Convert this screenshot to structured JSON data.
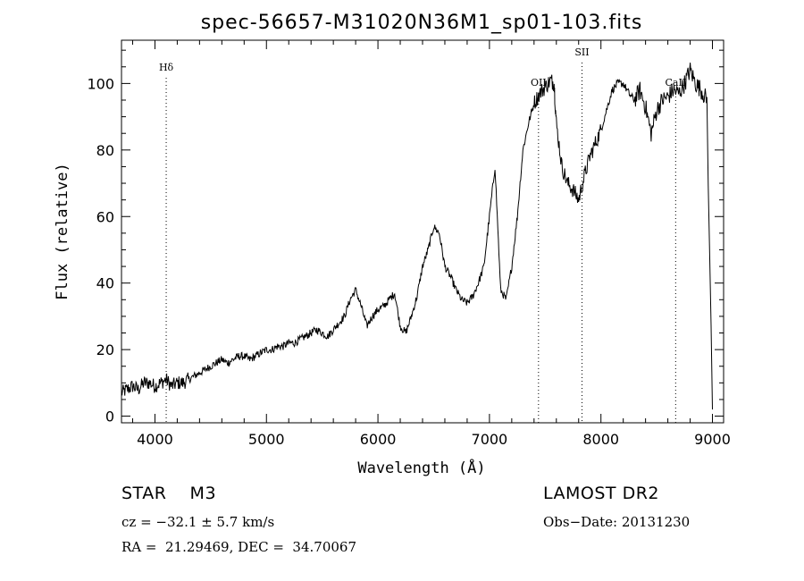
{
  "chart_data": {
    "type": "line",
    "title": "spec-56657-M31020N36M1_sp01-103.fits",
    "xlabel": "Wavelength (Å)",
    "ylabel": "Flux (relative)",
    "xlim": [
      3700,
      9100
    ],
    "ylim": [
      -2,
      113
    ],
    "xticks": [
      4000,
      5000,
      6000,
      7000,
      8000,
      9000
    ],
    "yticks": [
      0,
      20,
      40,
      60,
      80,
      100
    ],
    "grid": false,
    "lines": [
      {
        "label": "Hδ",
        "x": 4101
      },
      {
        "label": "OII",
        "x": 7440
      },
      {
        "label": "SII",
        "x": 7830
      },
      {
        "label": "CaII",
        "x": 8670
      }
    ],
    "series": [
      {
        "x": [
          3700,
          3750,
          3800,
          3850,
          3900,
          3950,
          4000,
          4050,
          4100,
          4150,
          4200,
          4250,
          4300,
          4350,
          4400,
          4450,
          4500,
          4550,
          4600,
          4650,
          4700,
          4750,
          4800,
          4850,
          4900,
          4950,
          5000,
          5050,
          5100,
          5150,
          5200,
          5250,
          5300,
          5350,
          5400,
          5450,
          5500,
          5550,
          5600,
          5650,
          5700,
          5750,
          5800,
          5850,
          5900,
          5950,
          6000,
          6050,
          6100,
          6150,
          6200,
          6250,
          6300,
          6350,
          6400,
          6450,
          6500,
          6550,
          6600,
          6650,
          6700,
          6750,
          6800,
          6850,
          6900,
          6950,
          7000,
          7050,
          7100,
          7150,
          7200,
          7250,
          7300,
          7350,
          7400,
          7450,
          7500,
          7550,
          7580,
          7600,
          7650,
          7700,
          7750,
          7800,
          7850,
          7900,
          7950,
          8000,
          8050,
          8100,
          8150,
          8200,
          8250,
          8300,
          8350,
          8400,
          8450,
          8500,
          8550,
          8600,
          8650,
          8700,
          8750,
          8800,
          8850,
          8900,
          8950,
          9000
        ],
        "y": [
          7,
          8,
          9,
          8,
          10,
          10,
          9,
          10,
          11,
          9,
          10,
          10,
          11,
          12,
          13,
          14,
          15,
          16,
          17,
          16,
          17,
          18,
          18,
          17,
          18,
          19,
          20,
          20,
          21,
          21,
          22,
          22,
          23,
          24,
          25,
          26,
          25,
          24,
          26,
          28,
          30,
          35,
          38,
          33,
          27,
          30,
          32,
          33,
          35,
          37,
          27,
          25,
          30,
          36,
          45,
          50,
          57,
          55,
          45,
          42,
          38,
          35,
          34,
          36,
          40,
          45,
          60,
          75,
          38,
          35,
          45,
          60,
          80,
          88,
          94,
          97,
          99,
          101,
          100,
          88,
          75,
          70,
          68,
          65,
          72,
          78,
          82,
          86,
          92,
          98,
          100,
          100,
          97,
          95,
          98,
          93,
          85,
          92,
          95,
          96,
          98,
          97,
          100,
          104,
          100,
          98,
          95,
          2
        ]
      }
    ]
  },
  "footer": {
    "left_line1": "STAR    M3",
    "left_line2": "cz = −32.1 ± 5.7 km/s",
    "left_line3": "RA =  21.29469, DEC =  34.70067",
    "right_line1": "LAMOST DR2",
    "right_line2": "Obs−Date: 20131230"
  }
}
